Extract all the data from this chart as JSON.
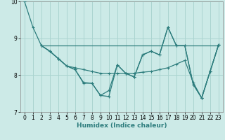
{
  "xlabel": "Humidex (Indice chaleur)",
  "bg_color": "#cceae7",
  "grid_color": "#aad4d0",
  "line_color": "#2d7d7d",
  "xlim": [
    -0.5,
    23.5
  ],
  "ylim": [
    7,
    10
  ],
  "yticks": [
    7,
    8,
    9,
    10
  ],
  "xticks": [
    0,
    1,
    2,
    3,
    4,
    5,
    6,
    7,
    8,
    9,
    10,
    11,
    12,
    13,
    14,
    15,
    16,
    17,
    18,
    19,
    20,
    21,
    22,
    23
  ],
  "series1": {
    "x": [
      0,
      1,
      2,
      3,
      4,
      5,
      6,
      7,
      8,
      9,
      10,
      11,
      12,
      13,
      14,
      15,
      16,
      17,
      18,
      19,
      20,
      21,
      22,
      23
    ],
    "y": [
      10.0,
      9.3,
      8.8,
      8.65,
      8.45,
      8.25,
      8.15,
      7.8,
      7.78,
      7.45,
      7.42,
      8.28,
      8.05,
      7.95,
      8.55,
      8.65,
      8.55,
      9.3,
      8.8,
      8.8,
      7.75,
      7.38,
      8.1,
      8.82
    ]
  },
  "series2": {
    "x": [
      2,
      3,
      4,
      5,
      6,
      7,
      8,
      9,
      10,
      11,
      12,
      13,
      14,
      15,
      16,
      17,
      18,
      19,
      20,
      21,
      22,
      23
    ],
    "y": [
      8.8,
      8.65,
      8.45,
      8.25,
      8.2,
      8.15,
      8.1,
      8.05,
      8.05,
      8.05,
      8.05,
      8.05,
      8.08,
      8.1,
      8.15,
      8.2,
      8.3,
      8.4,
      7.8,
      7.38,
      8.1,
      8.82
    ]
  },
  "flat_line": {
    "x": [
      2,
      23
    ],
    "y": [
      8.8,
      8.8
    ]
  },
  "series3": {
    "x": [
      2,
      3,
      4,
      5,
      6,
      7,
      8,
      9,
      10,
      11,
      12,
      13,
      14,
      15,
      16,
      17,
      18,
      19,
      20,
      21,
      22,
      23
    ],
    "y": [
      8.8,
      8.65,
      8.45,
      8.25,
      8.15,
      7.78,
      7.78,
      7.45,
      7.58,
      8.28,
      8.05,
      7.95,
      8.55,
      8.65,
      8.55,
      9.3,
      8.8,
      8.8,
      7.75,
      7.38,
      8.1,
      8.82
    ]
  }
}
